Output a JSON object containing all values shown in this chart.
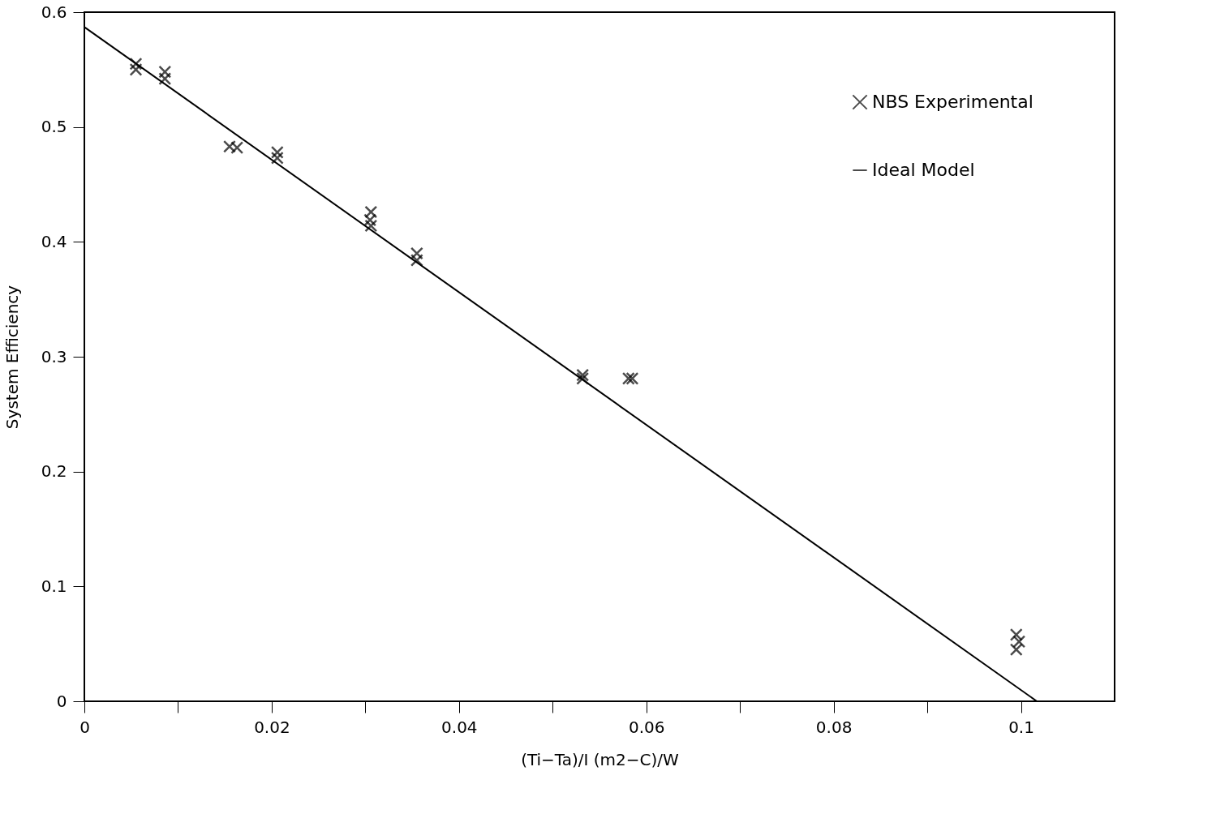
{
  "chart_data": {
    "type": "scatter",
    "xlabel": "(Ti−Ta)/I    (m2−C)/W",
    "ylabel": "System Efficiency",
    "xlim": [
      0,
      0.11
    ],
    "ylim": [
      0,
      0.6
    ],
    "xticks": [
      0,
      {
        "value": 0.01,
        "label": null
      },
      0.02,
      {
        "value": 0.03,
        "label": null
      },
      0.04,
      {
        "value": 0.05,
        "label": null
      },
      0.06,
      {
        "value": 0.07,
        "label": null
      },
      0.08,
      {
        "value": 0.09,
        "label": null
      },
      0.1
    ],
    "yticks": [
      0,
      0.1,
      0.2,
      0.3,
      0.4,
      0.5,
      0.6
    ],
    "grid": false,
    "legend": "top right",
    "series": [
      {
        "name": "NBS Experimental",
        "marker": "cross",
        "color": "#000000",
        "x": [
          0.0055,
          0.0055,
          0.0086,
          0.0086,
          0.0155,
          0.0163,
          0.0206,
          0.0206,
          0.0306,
          0.0306,
          0.0305,
          0.0355,
          0.0355,
          0.0532,
          0.0532,
          0.0581,
          0.0585,
          0.0995,
          0.0998,
          0.0995
        ],
        "values": [
          0.555,
          0.55,
          0.548,
          0.542,
          0.483,
          0.482,
          0.478,
          0.473,
          0.426,
          0.414,
          0.419,
          0.39,
          0.384,
          0.284,
          0.281,
          0.281,
          0.281,
          0.058,
          0.052,
          0.045
        ]
      },
      {
        "name": "Ideal Model",
        "type": "line",
        "color": "#000000",
        "x": [
          0,
          0.1017
        ],
        "values": [
          0.587,
          0
        ]
      }
    ]
  }
}
